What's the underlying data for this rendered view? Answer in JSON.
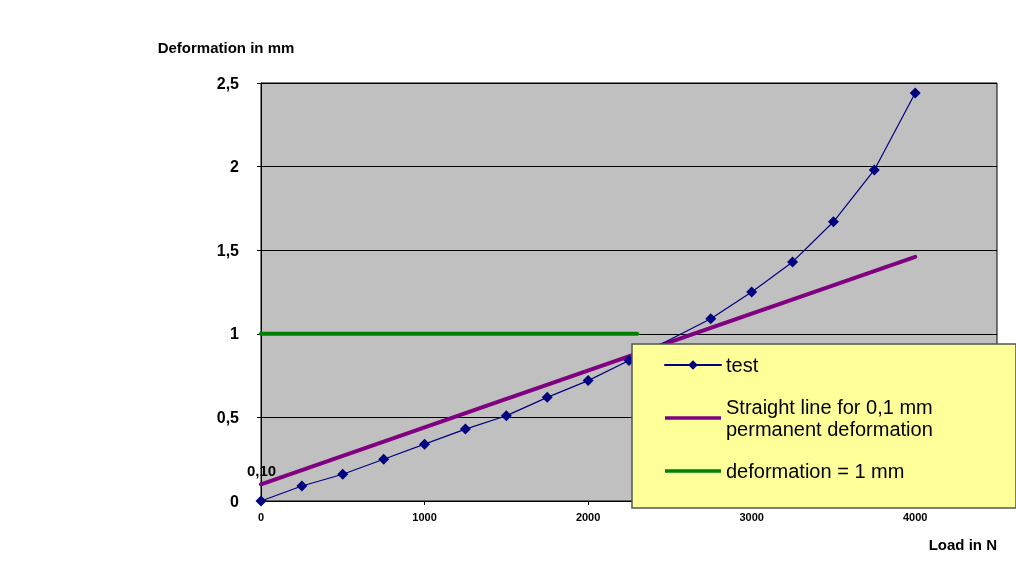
{
  "chart_data": {
    "type": "line",
    "xlabel": "Load in N",
    "ylabel": "Deformation in mm",
    "xlim": [
      0,
      4500
    ],
    "xticks": [
      0,
      1000,
      2000,
      3000,
      4000
    ],
    "ylim": [
      0,
      2.5
    ],
    "yticks": [
      0,
      {
        "value": 0.5,
        "label": "0,5"
      },
      1,
      {
        "value": 1.5,
        "label": "1,5"
      },
      2,
      {
        "value": 2.5,
        "label": "2,5"
      }
    ],
    "grid": "y",
    "legend": "bottom right",
    "series": [
      {
        "name": "test",
        "color": "#000080",
        "marker": "diamond",
        "x": [
          0,
          250,
          500,
          750,
          1000,
          1250,
          1500,
          1750,
          2000,
          2250,
          2500,
          2750,
          3000,
          3250,
          3500,
          3750,
          4000
        ],
        "values": [
          0,
          0.09,
          0.16,
          0.25,
          0.34,
          0.43,
          0.51,
          0.62,
          0.72,
          0.84,
          null,
          1.09,
          1.25,
          1.43,
          1.67,
          1.98,
          2.44
        ]
      },
      {
        "name": "Straight line for 0,1 mm permanent deformation",
        "color": "#800080",
        "marker": "none",
        "x": [
          0,
          4000
        ],
        "values": [
          0.1,
          1.46
        ]
      },
      {
        "name": "deformation = 1 mm",
        "color": "#008000",
        "marker": "none",
        "x": [
          0,
          2300
        ],
        "values": [
          1,
          1
        ]
      }
    ],
    "annotations": [
      {
        "text": "0,10",
        "x": 0,
        "y": 0.1
      }
    ]
  }
}
